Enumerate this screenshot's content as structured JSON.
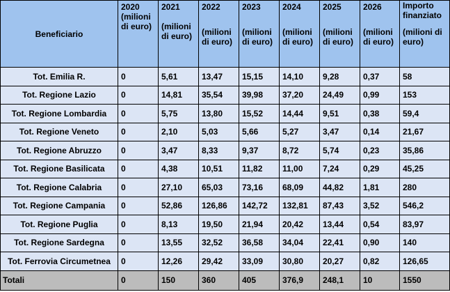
{
  "header": {
    "beneficiario": "Beneficiario",
    "columns": [
      {
        "year": "2020",
        "unit": "(milioni di euro)"
      },
      {
        "year": "2021",
        "unit": "(milioni di euro)"
      },
      {
        "year": "2022",
        "unit": "(milioni di euro)"
      },
      {
        "year": "2023",
        "unit": "(milioni di euro)"
      },
      {
        "year": "2024",
        "unit": "(milioni di euro)"
      },
      {
        "year": "2025",
        "unit": "(milioni di euro)"
      },
      {
        "year": "2026",
        "unit": "(milioni di euro)"
      },
      {
        "year": "Importo finanziato",
        "unit": "(milioni di euro)"
      }
    ]
  },
  "rows": [
    {
      "name": "Tot. Emilia R.",
      "values": [
        "0",
        "5,61",
        "13,47",
        "15,15",
        "14,10",
        "9,28",
        "0,37",
        "58"
      ]
    },
    {
      "name": "Tot. Regione Lazio",
      "values": [
        "0",
        "14,81",
        "35,54",
        "39,98",
        "37,20",
        "24,49",
        "0,99",
        "153"
      ]
    },
    {
      "name": "Tot. Regione Lombardia",
      "values": [
        "0",
        "5,75",
        "13,80",
        "15,52",
        "14,44",
        "9,51",
        "0,38",
        "59,4"
      ]
    },
    {
      "name": "Tot. Regione Veneto",
      "values": [
        "0",
        "2,10",
        "5,03",
        "5,66",
        "5,27",
        "3,47",
        "0,14",
        "21,67"
      ]
    },
    {
      "name": "Tot. Regione Abruzzo",
      "values": [
        "0",
        "3,47",
        "8,33",
        "9,37",
        "8,72",
        "5,74",
        "0,23",
        "35,86"
      ]
    },
    {
      "name": "Tot. Regione Basilicata",
      "values": [
        "0",
        "4,38",
        "10,51",
        "11,82",
        "11,00",
        "7,24",
        "0,29",
        "45,25"
      ]
    },
    {
      "name": "Tot. Regione Calabria",
      "values": [
        "0",
        "27,10",
        "65,03",
        "73,16",
        "68,09",
        "44,82",
        "1,81",
        "280"
      ]
    },
    {
      "name": "Tot. Regione Campania",
      "values": [
        "0",
        "52,86",
        "126,86",
        "142,72",
        "132,81",
        "87,43",
        "3,52",
        "546,2"
      ]
    },
    {
      "name": "Tot. Regione Puglia",
      "values": [
        "0",
        "8,13",
        "19,50",
        "21,94",
        "20,42",
        "13,44",
        "0,54",
        "83,97"
      ]
    },
    {
      "name": "Tot. Regione Sardegna",
      "values": [
        "0",
        "13,55",
        "32,52",
        "36,58",
        "34,04",
        "22,41",
        "0,90",
        "140"
      ]
    },
    {
      "name": "Tot. Ferrovia Circumetnea",
      "values": [
        "0",
        "12,26",
        "29,42",
        "33,09",
        "30,80",
        "20,27",
        "0,82",
        "126,65"
      ]
    }
  ],
  "totals": {
    "name": "Totali",
    "values": [
      "0",
      "150",
      "360",
      "405",
      "376,9",
      "248,1",
      "10",
      "1550"
    ]
  }
}
